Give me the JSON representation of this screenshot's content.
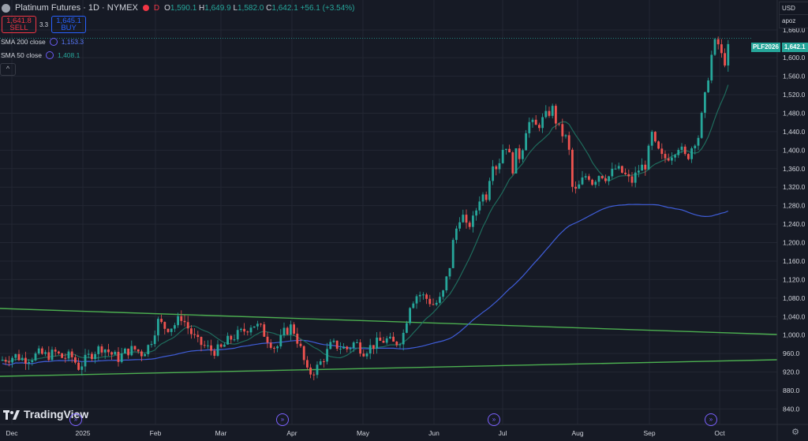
{
  "header": {
    "symbol_title": "Platinum Futures · 1D · NYMEX",
    "badge": "D",
    "ohlc": {
      "o_label": "O",
      "o": "1,590.1",
      "h_label": "H",
      "h": "1,649.9",
      "l_label": "L",
      "l": "1,582.0",
      "c_label": "C",
      "c": "1,642.1",
      "change": "+56.1 (+3.54%)"
    }
  },
  "trade": {
    "sell_price": "1,641.8",
    "sell_label": "SELL",
    "spread": "3.3",
    "buy_price": "1,645.1",
    "buy_label": "BUY"
  },
  "indicators": [
    {
      "name": "SMA 200 close",
      "value": "1,153.3",
      "color": "#5b7bff"
    },
    {
      "name": "SMA 50 close",
      "value": "1,408.1",
      "color": "#26a69a"
    }
  ],
  "collapse_icon": "chevron-up-icon",
  "currency": {
    "label": "USD",
    "mode": "apoz"
  },
  "price_tag": {
    "symbol": "PLF2026",
    "value": "1,642.1"
  },
  "branding": {
    "name": "TradingView"
  },
  "colors": {
    "up": "#26a69a",
    "down": "#ef5350",
    "trendline": "#4caf50",
    "sma200": "#3f5dd8",
    "sma50": "#1e6b5c",
    "bg": "#161a25"
  },
  "chart_data": {
    "type": "candlestick",
    "y_ticks": [
      840,
      880,
      920,
      960,
      1000,
      1040,
      1080,
      1120,
      1160,
      1200,
      1240,
      1280,
      1320,
      1360,
      1400,
      1440,
      1480,
      1520,
      1560,
      1600,
      1660
    ],
    "y_tick_labels": [
      "840.0",
      "880.0",
      "920.0",
      "960.0",
      "1,000.0",
      "1,040.0",
      "1,080.0",
      "1,120.0",
      "1,160.0",
      "1,200.0",
      "1,240.0",
      "1,280.0",
      "1,320.0",
      "1,360.0",
      "1,400.0",
      "1,440.0",
      "1,480.0",
      "1,520.0",
      "1,560.0",
      "1,600.0",
      "1,660.0"
    ],
    "x_labels": [
      "Dec",
      "2025",
      "Feb",
      "Mar",
      "Apr",
      "May",
      "Jun",
      "Jul",
      "Aug",
      "Sep",
      "Oct"
    ],
    "ylim": [
      820,
      1690
    ],
    "close_path": [
      [
        0,
        945
      ],
      [
        10,
        950
      ],
      [
        20,
        955
      ],
      [
        30,
        948
      ],
      [
        40,
        952
      ],
      [
        50,
        960
      ],
      [
        60,
        955
      ],
      [
        70,
        962
      ],
      [
        80,
        950
      ],
      [
        90,
        955
      ],
      [
        100,
        930
      ],
      [
        110,
        950
      ],
      [
        120,
        965
      ],
      [
        130,
        975
      ],
      [
        140,
        960
      ],
      [
        150,
        950
      ],
      [
        160,
        965
      ],
      [
        170,
        970
      ],
      [
        180,
        960
      ],
      [
        190,
        980
      ],
      [
        200,
        1030
      ],
      [
        210,
        1015
      ],
      [
        220,
        1020
      ],
      [
        230,
        1040
      ],
      [
        240,
        1010
      ],
      [
        250,
        985
      ],
      [
        260,
        975
      ],
      [
        270,
        965
      ],
      [
        280,
        970
      ],
      [
        290,
        990
      ],
      [
        300,
        1000
      ],
      [
        310,
        1010
      ],
      [
        320,
        1025
      ],
      [
        330,
        1015
      ],
      [
        340,
        990
      ],
      [
        350,
        970
      ],
      [
        360,
        1005
      ],
      [
        370,
        1020
      ],
      [
        380,
        975
      ],
      [
        390,
        915
      ],
      [
        400,
        925
      ],
      [
        410,
        950
      ],
      [
        420,
        980
      ],
      [
        430,
        975
      ],
      [
        440,
        970
      ],
      [
        450,
        985
      ],
      [
        460,
        965
      ],
      [
        470,
        975
      ],
      [
        480,
        985
      ],
      [
        490,
        990
      ],
      [
        500,
        980
      ],
      [
        510,
        995
      ],
      [
        520,
        1070
      ],
      [
        530,
        1090
      ],
      [
        540,
        1080
      ],
      [
        550,
        1065
      ],
      [
        560,
        1080
      ],
      [
        570,
        1150
      ],
      [
        575,
        1210
      ],
      [
        580,
        1240
      ],
      [
        585,
        1270
      ],
      [
        590,
        1230
      ],
      [
        600,
        1250
      ],
      [
        610,
        1310
      ],
      [
        615,
        1290
      ],
      [
        620,
        1340
      ],
      [
        625,
        1380
      ],
      [
        630,
        1360
      ],
      [
        640,
        1420
      ],
      [
        645,
        1390
      ],
      [
        650,
        1360
      ],
      [
        655,
        1400
      ],
      [
        660,
        1380
      ],
      [
        665,
        1440
      ],
      [
        670,
        1460
      ],
      [
        680,
        1450
      ],
      [
        690,
        1470
      ],
      [
        700,
        1490
      ],
      [
        705,
        1460
      ],
      [
        710,
        1440
      ],
      [
        715,
        1430
      ],
      [
        720,
        1420
      ],
      [
        725,
        1320
      ],
      [
        730,
        1310
      ],
      [
        740,
        1340
      ],
      [
        745,
        1350
      ],
      [
        750,
        1330
      ],
      [
        760,
        1350
      ],
      [
        770,
        1340
      ],
      [
        780,
        1360
      ],
      [
        790,
        1350
      ],
      [
        800,
        1330
      ],
      [
        810,
        1360
      ],
      [
        820,
        1370
      ],
      [
        825,
        1440
      ],
      [
        830,
        1410
      ],
      [
        840,
        1380
      ],
      [
        850,
        1390
      ],
      [
        860,
        1410
      ],
      [
        870,
        1380
      ],
      [
        880,
        1420
      ],
      [
        885,
        1430
      ],
      [
        890,
        1480
      ],
      [
        895,
        1530
      ],
      [
        900,
        1590
      ],
      [
        905,
        1630
      ],
      [
        910,
        1630
      ],
      [
        915,
        1600
      ],
      [
        920,
        1590
      ],
      [
        925,
        1642
      ]
    ]
  }
}
